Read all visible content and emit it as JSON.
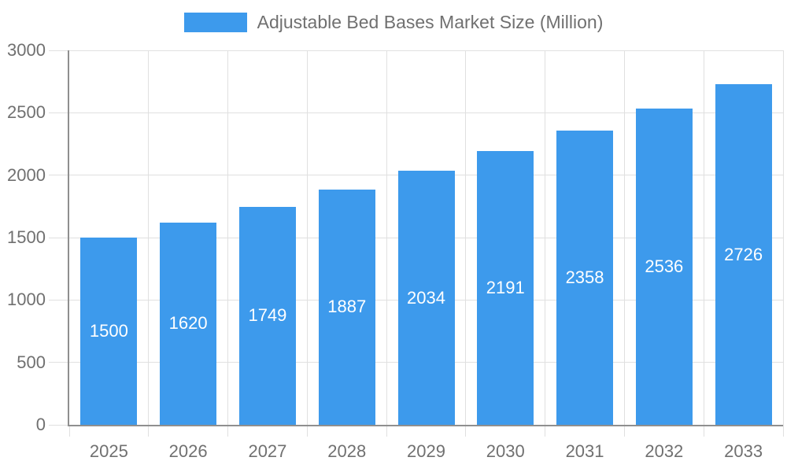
{
  "chart_data": {
    "type": "bar",
    "legend": "Adjustable Bed Bases Market Size (Million)",
    "legend_position": "top",
    "categories": [
      "2025",
      "2026",
      "2027",
      "2028",
      "2029",
      "2030",
      "2031",
      "2032",
      "2033"
    ],
    "series": [
      {
        "name": "Adjustable Bed Bases Market Size (Million)",
        "values": [
          1500,
          1620,
          1749,
          1887,
          2034,
          2191,
          2358,
          2536,
          2726
        ]
      }
    ],
    "values": [
      1500,
      1620,
      1749,
      1887,
      2034,
      2191,
      2358,
      2536,
      2726
    ],
    "bar_value_labels": [
      1500,
      1620,
      1749,
      1887,
      2034,
      2191,
      2358,
      2536,
      2726
    ],
    "xlabel": "",
    "ylabel": "",
    "ylim": [
      0,
      3000
    ],
    "yticks": [
      0,
      500,
      1000,
      1500,
      2000,
      2500,
      3000
    ],
    "grid": true,
    "colors": {
      "bar": "#3D9AEC",
      "grid": "#E0E0E0",
      "axis": "#8F8F8F",
      "tick_text": "#707070",
      "bar_label_text": "#FFFFFF",
      "background": "#FFFFFF"
    }
  }
}
